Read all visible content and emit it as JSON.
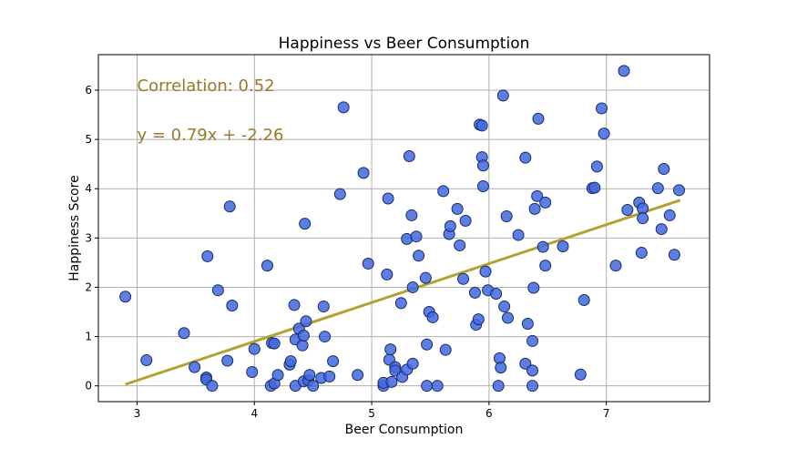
{
  "chart_data": {
    "type": "scatter",
    "title": "Happiness vs Beer Consumption",
    "xlabel": "Beer Consumption",
    "ylabel": "Happiness Score",
    "xlim": [
      2.67,
      7.88
    ],
    "ylim": [
      -0.32,
      6.72
    ],
    "xticks": [
      3,
      4,
      5,
      6,
      7
    ],
    "yticks": [
      0,
      1,
      2,
      3,
      4,
      5,
      6
    ],
    "grid": true,
    "annotations": {
      "correlation": "Correlation:  0.52",
      "equation": "y = 0.79x + -2.26"
    },
    "fit_line": {
      "slope": 0.79,
      "intercept": -2.26,
      "x_range": [
        2.9,
        7.63
      ]
    },
    "colors": {
      "point_fill": "#4169e1",
      "point_stroke": "#1a2a66",
      "fit_line": "#b5a030",
      "annotation": "#9a7a2a"
    },
    "points": [
      [
        2.9,
        1.81
      ],
      [
        3.08,
        0.52
      ],
      [
        3.4,
        1.07
      ],
      [
        3.49,
        0.38
      ],
      [
        3.59,
        0.17
      ],
      [
        3.59,
        0.13
      ],
      [
        3.6,
        2.63
      ],
      [
        3.64,
        0.0
      ],
      [
        3.69,
        1.94
      ],
      [
        3.77,
        0.51
      ],
      [
        3.79,
        3.64
      ],
      [
        3.81,
        1.63
      ],
      [
        3.98,
        0.28
      ],
      [
        4.0,
        0.75
      ],
      [
        4.11,
        2.44
      ],
      [
        4.14,
        0.0
      ],
      [
        4.15,
        0.87
      ],
      [
        4.17,
        0.86
      ],
      [
        4.17,
        0.05
      ],
      [
        4.2,
        0.22
      ],
      [
        4.3,
        0.43
      ],
      [
        4.31,
        0.5
      ],
      [
        4.34,
        1.64
      ],
      [
        4.35,
        0.94
      ],
      [
        4.35,
        0.0
      ],
      [
        4.38,
        1.16
      ],
      [
        4.41,
        0.82
      ],
      [
        4.42,
        1.02
      ],
      [
        4.42,
        0.09
      ],
      [
        4.43,
        3.29
      ],
      [
        4.44,
        1.31
      ],
      [
        4.46,
        0.11
      ],
      [
        4.47,
        0.22
      ],
      [
        4.5,
        0.0
      ],
      [
        4.57,
        0.16
      ],
      [
        4.59,
        1.61
      ],
      [
        4.6,
        1.0
      ],
      [
        4.64,
        0.19
      ],
      [
        4.67,
        0.5
      ],
      [
        4.73,
        3.89
      ],
      [
        4.76,
        5.65
      ],
      [
        4.88,
        0.22
      ],
      [
        4.93,
        4.32
      ],
      [
        4.97,
        2.48
      ],
      [
        5.1,
        0.0
      ],
      [
        5.1,
        0.06
      ],
      [
        5.13,
        2.26
      ],
      [
        5.14,
        3.8
      ],
      [
        5.15,
        0.53
      ],
      [
        5.16,
        0.74
      ],
      [
        5.17,
        0.08
      ],
      [
        5.2,
        0.38
      ],
      [
        5.2,
        0.31
      ],
      [
        5.25,
        1.68
      ],
      [
        5.26,
        0.18
      ],
      [
        5.3,
        2.98
      ],
      [
        5.3,
        0.33
      ],
      [
        5.32,
        4.66
      ],
      [
        5.34,
        3.46
      ],
      [
        5.35,
        2.0
      ],
      [
        5.35,
        0.45
      ],
      [
        5.38,
        3.03
      ],
      [
        5.4,
        2.64
      ],
      [
        5.46,
        2.19
      ],
      [
        5.47,
        0.84
      ],
      [
        5.47,
        0.0
      ],
      [
        5.49,
        1.5
      ],
      [
        5.52,
        1.39
      ],
      [
        5.56,
        0.0
      ],
      [
        5.61,
        3.95
      ],
      [
        5.63,
        0.73
      ],
      [
        5.66,
        3.08
      ],
      [
        5.67,
        3.24
      ],
      [
        5.73,
        3.59
      ],
      [
        5.75,
        2.85
      ],
      [
        5.78,
        2.17
      ],
      [
        5.8,
        3.35
      ],
      [
        5.88,
        1.89
      ],
      [
        5.89,
        1.24
      ],
      [
        5.91,
        1.35
      ],
      [
        5.92,
        5.3
      ],
      [
        5.94,
        5.28
      ],
      [
        5.94,
        4.64
      ],
      [
        5.95,
        4.47
      ],
      [
        5.95,
        4.05
      ],
      [
        5.97,
        2.32
      ],
      [
        5.99,
        1.94
      ],
      [
        6.06,
        1.87
      ],
      [
        6.08,
        0.0
      ],
      [
        6.09,
        0.56
      ],
      [
        6.1,
        0.37
      ],
      [
        6.12,
        5.89
      ],
      [
        6.13,
        1.61
      ],
      [
        6.15,
        3.44
      ],
      [
        6.16,
        1.38
      ],
      [
        6.25,
        3.06
      ],
      [
        6.31,
        4.63
      ],
      [
        6.31,
        0.45
      ],
      [
        6.33,
        1.26
      ],
      [
        6.37,
        0.0
      ],
      [
        6.37,
        0.31
      ],
      [
        6.37,
        0.91
      ],
      [
        6.38,
        1.99
      ],
      [
        6.39,
        3.59
      ],
      [
        6.41,
        3.85
      ],
      [
        6.42,
        5.42
      ],
      [
        6.46,
        2.82
      ],
      [
        6.48,
        3.72
      ],
      [
        6.48,
        2.44
      ],
      [
        6.63,
        2.83
      ],
      [
        6.78,
        0.23
      ],
      [
        6.81,
        1.74
      ],
      [
        6.88,
        4.01
      ],
      [
        6.9,
        4.02
      ],
      [
        6.92,
        4.45
      ],
      [
        6.96,
        5.63
      ],
      [
        6.98,
        5.12
      ],
      [
        7.08,
        2.44
      ],
      [
        7.15,
        6.39
      ],
      [
        7.18,
        3.57
      ],
      [
        7.28,
        3.72
      ],
      [
        7.3,
        2.7
      ],
      [
        7.31,
        3.6
      ],
      [
        7.31,
        3.4
      ],
      [
        7.44,
        4.01
      ],
      [
        7.47,
        3.18
      ],
      [
        7.49,
        4.4
      ],
      [
        7.54,
        3.46
      ],
      [
        7.58,
        2.66
      ],
      [
        7.62,
        3.97
      ]
    ]
  }
}
